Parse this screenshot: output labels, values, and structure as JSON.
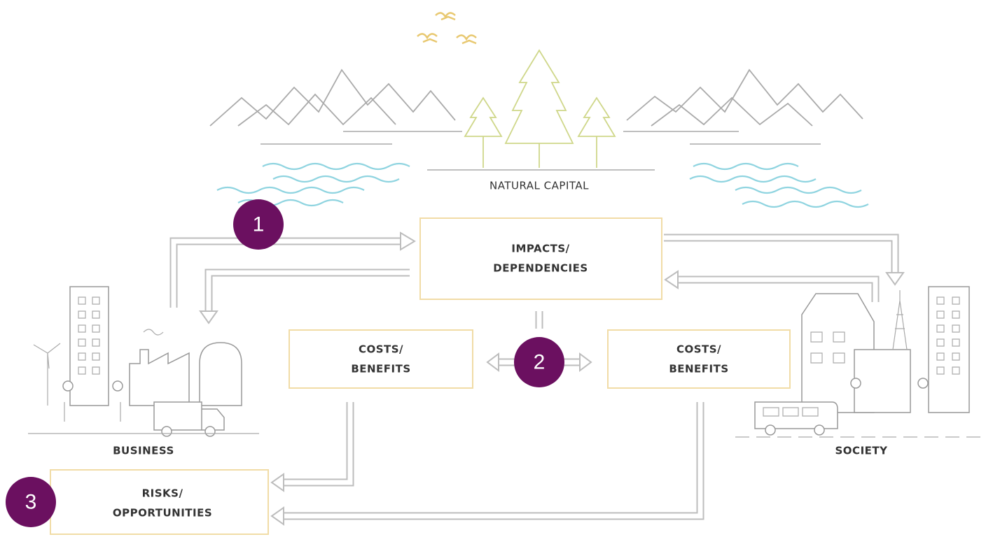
{
  "natural_capital": "NATURAL CAPITAL",
  "impacts_box": {
    "lines": [
      "IMPACTS/",
      "DEPENDENCIES"
    ]
  },
  "costs_left": {
    "lines": [
      "COSTS/",
      "BENEFITS"
    ]
  },
  "costs_right": {
    "lines": [
      "COSTS/",
      "BENEFITS"
    ]
  },
  "risks_box": {
    "lines": [
      "RISKS/",
      "OPPORTUNITIES"
    ]
  },
  "business": "BUSINESS",
  "society": "SOCIETY",
  "badges": [
    "1",
    "2",
    "3"
  ]
}
